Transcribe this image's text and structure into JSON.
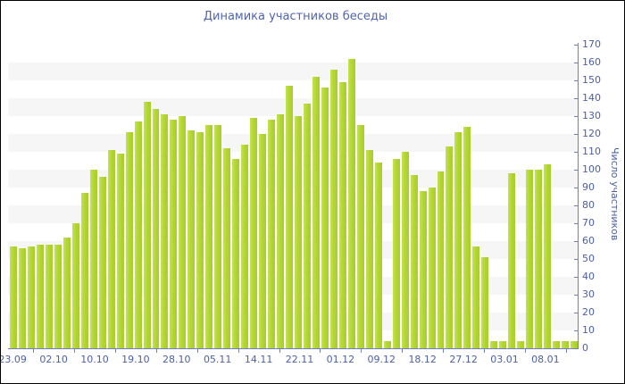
{
  "chart_data": {
    "type": "bar",
    "title": "Динамика участников беседы",
    "ylabel": "Число участников",
    "xlabel": "",
    "ylim": [
      0,
      170
    ],
    "ytick_step": 10,
    "grid": "alternating horizontal stripes every 10 units",
    "legend": "none",
    "bar_color": "#b3d733",
    "stripe_color": "#f6f6f6",
    "title_color": "#5064ae",
    "axis_color": "#7282b6",
    "label_color": "#4a5fa8",
    "x_labels": [
      "23.09",
      "02.10",
      "10.10",
      "19.10",
      "28.10",
      "05.11",
      "14.11",
      "22.11",
      "01.12",
      "09.12",
      "18.12",
      "27.12",
      "03.01",
      "08.01"
    ],
    "y_labels": [
      0,
      10,
      20,
      30,
      40,
      50,
      60,
      70,
      80,
      90,
      100,
      110,
      120,
      130,
      140,
      150,
      160,
      170
    ],
    "values": [
      57,
      56,
      57,
      58,
      58,
      58,
      62,
      70,
      87,
      100,
      96,
      111,
      109,
      121,
      127,
      138,
      134,
      131,
      128,
      130,
      122,
      121,
      125,
      125,
      112,
      106,
      114,
      129,
      120,
      128,
      131,
      147,
      130,
      137,
      152,
      146,
      156,
      149,
      162,
      125,
      111,
      104,
      4,
      106,
      110,
      97,
      88,
      90,
      99,
      113,
      121,
      124,
      57,
      51,
      4,
      4,
      98,
      4,
      100,
      100,
      103,
      4,
      4,
      4
    ]
  }
}
